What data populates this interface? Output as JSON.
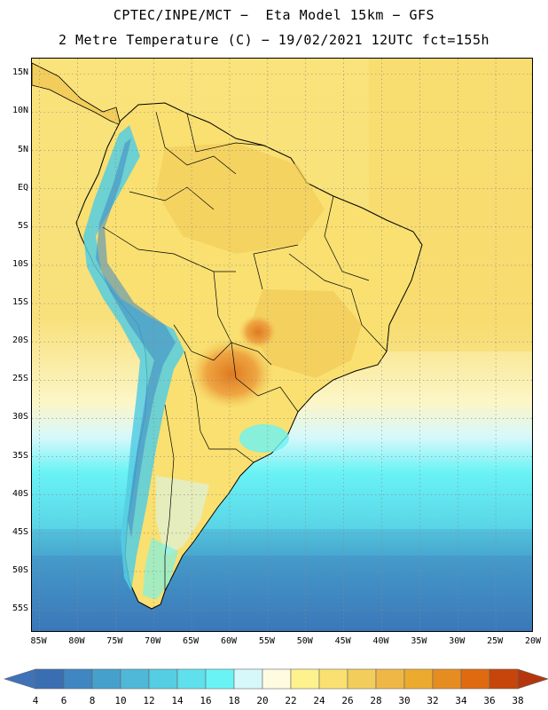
{
  "header": {
    "line1": "CPTEC/INPE/MCT −  Eta Model 15km − GFS",
    "line2": "2 Metre Temperature (C) − 19/02/2021 12UTC fct=155h"
  },
  "map": {
    "region": "South America",
    "lat_labels": [
      "15N",
      "10N",
      "5N",
      "EQ",
      "5S",
      "10S",
      "15S",
      "20S",
      "25S",
      "30S",
      "35S",
      "40S",
      "45S",
      "50S",
      "55S"
    ],
    "lon_labels": [
      "85W",
      "80W",
      "75W",
      "70W",
      "65W",
      "60W",
      "55W",
      "50W",
      "45W",
      "40W",
      "35W",
      "30W",
      "25W",
      "20W"
    ],
    "lat_range": [
      17,
      -58
    ],
    "lon_range": [
      -86,
      -20
    ]
  },
  "colorbar": {
    "labels": [
      "4",
      "6",
      "8",
      "10",
      "12",
      "14",
      "16",
      "18",
      "20",
      "22",
      "24",
      "26",
      "28",
      "30",
      "32",
      "34",
      "36",
      "38"
    ],
    "below_color": "#3f72b8",
    "above_color": "#b5360d",
    "colors": [
      "#3a6eb3",
      "#3f86c2",
      "#46a0cc",
      "#4fb8d8",
      "#55cde2",
      "#5fe0ec",
      "#6af3f5",
      "#d6f8fb",
      "#fffbe0",
      "#fdf28e",
      "#f9e071",
      "#f3cd5b",
      "#efb746",
      "#ecab2c",
      "#e68d21",
      "#df6a10",
      "#c7450a"
    ]
  }
}
